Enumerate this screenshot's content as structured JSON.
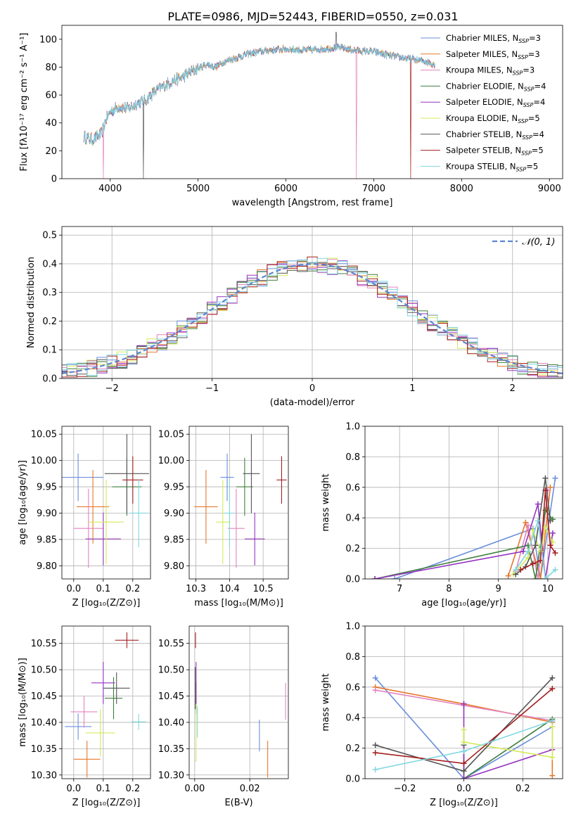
{
  "title": "PLATE=0986, MJD=52443, FIBERID=0550, z=0.031",
  "colors": [
    "#6a8fdc",
    "#e6782a",
    "#e384bd",
    "#3f7f3f",
    "#9633c0",
    "#d4eb5a",
    "#555555",
    "#a51f1f",
    "#7fd7e0"
  ],
  "models": [
    {
      "base": "Chabrier MILES",
      "n": "3"
    },
    {
      "base": "Salpeter MILES",
      "n": "3"
    },
    {
      "base": "Kroupa MILES",
      "n": "3"
    },
    {
      "base": "Chabrier ELODIE",
      "n": "4"
    },
    {
      "base": "Salpeter ELODIE",
      "n": "4"
    },
    {
      "base": "Kroupa ELODIE",
      "n": "5"
    },
    {
      "base": "Chabrier STELIB",
      "n": "4"
    },
    {
      "base": "Salpeter STELIB",
      "n": "5"
    },
    {
      "base": "Kroupa STELIB",
      "n": "5"
    }
  ],
  "legend_sub": "SSP",
  "legend_prefix": "N",
  "chart_data": [
    {
      "id": "spectrum",
      "type": "line",
      "xlabel": "wavelength [Angstrom, rest frame]",
      "ylabel": "Flux [fλ10⁻¹⁷ erg cm⁻² s⁻¹ A⁻¹]",
      "xlim": [
        3450,
        9150
      ],
      "ylim": [
        0,
        110
      ],
      "xticks": [
        4000,
        5000,
        6000,
        7000,
        8000,
        9000
      ],
      "yticks": [
        0,
        20,
        40,
        60,
        80,
        100
      ],
      "curve": [
        [
          3700,
          30
        ],
        [
          3800,
          28
        ],
        [
          3900,
          32
        ],
        [
          3950,
          42
        ],
        [
          4000,
          48
        ],
        [
          4100,
          52
        ],
        [
          4200,
          50
        ],
        [
          4300,
          54
        ],
        [
          4400,
          56
        ],
        [
          4500,
          62
        ],
        [
          4600,
          66
        ],
        [
          4700,
          70
        ],
        [
          4800,
          72
        ],
        [
          4900,
          76
        ],
        [
          5000,
          79
        ],
        [
          5100,
          82
        ],
        [
          5200,
          80
        ],
        [
          5300,
          84
        ],
        [
          5400,
          86
        ],
        [
          5500,
          88
        ],
        [
          5600,
          90
        ],
        [
          5800,
          92
        ],
        [
          6000,
          93
        ],
        [
          6200,
          92
        ],
        [
          6400,
          93
        ],
        [
          6600,
          94
        ],
        [
          6800,
          92
        ],
        [
          7000,
          91
        ],
        [
          7200,
          88
        ],
        [
          7400,
          86
        ],
        [
          7600,
          84
        ],
        [
          7700,
          82
        ]
      ],
      "line_x": [
        3700,
        7700
      ]
    },
    {
      "id": "residuals",
      "type": "line",
      "xlabel": "(data-model)/error",
      "ylabel": "Normed distribution",
      "xlim": [
        -2.5,
        2.5
      ],
      "ylim": [
        0,
        0.53
      ],
      "xticks": [
        -2,
        -1,
        0,
        1,
        2
      ],
      "yticks": [
        0.0,
        0.1,
        0.2,
        0.3,
        0.4,
        0.5
      ],
      "legend": "𝒩(0, 1)"
    },
    {
      "id": "z_age",
      "type": "scatter",
      "xlabel": "Z [log₁₀(Z/Z⊙)]",
      "ylabel": "age  [log₁₀(age/yr)]",
      "xlim": [
        -0.04,
        0.26
      ],
      "ylim": [
        9.775,
        10.065
      ],
      "xticks": [
        0.0,
        0.1,
        0.2
      ],
      "yticks": [
        9.8,
        9.85,
        9.9,
        9.95,
        10.0,
        10.05
      ],
      "points": [
        [
          0.015,
          9.968
        ],
        [
          0.065,
          9.912
        ],
        [
          0.05,
          9.871
        ],
        [
          0.18,
          9.95
        ],
        [
          0.1,
          9.851
        ],
        [
          0.11,
          9.883
        ],
        [
          0.18,
          9.975
        ],
        [
          0.2,
          9.963
        ],
        [
          0.22,
          9.9
        ]
      ],
      "xerr": [
        0.085,
        0.055,
        0.05,
        0.05,
        0.06,
        0.06,
        0.075,
        0.035,
        0.03
      ],
      "yerr": [
        0.045,
        0.07,
        0.075,
        0.055,
        0.05,
        0.08,
        0.075,
        0.045,
        0.065
      ]
    },
    {
      "id": "mass_age",
      "type": "scatter",
      "xlabel": "mass [log₁₀(M/M⊙)]",
      "ylabel": "",
      "xlim": [
        10.28,
        10.575
      ],
      "ylim": [
        9.775,
        10.065
      ],
      "xticks": [
        10.3,
        10.4,
        10.5
      ],
      "yticks": [
        9.8,
        9.85,
        9.9,
        9.95,
        10.0,
        10.05
      ],
      "points": [
        [
          10.393,
          9.968
        ],
        [
          10.33,
          9.912
        ],
        [
          10.42,
          9.871
        ],
        [
          10.445,
          9.95
        ],
        [
          10.475,
          9.851
        ],
        [
          10.38,
          9.883
        ],
        [
          10.465,
          9.975
        ],
        [
          10.555,
          9.963
        ],
        [
          10.4,
          9.9
        ]
      ],
      "xerr": [
        0.02,
        0.035,
        0.025,
        0.025,
        0.03,
        0.02,
        0.025,
        0.015,
        0.015
      ],
      "yerr": [
        0.045,
        0.07,
        0.075,
        0.055,
        0.05,
        0.08,
        0.075,
        0.045,
        0.065
      ]
    },
    {
      "id": "age_weight",
      "type": "line",
      "xlabel": "age  [log₁₀(age/yr)]",
      "ylabel": "mass weight",
      "xlim": [
        6.3,
        10.3
      ],
      "ylim": [
        0,
        1
      ],
      "xticks": [
        7,
        8,
        9,
        10
      ],
      "yticks": [
        0.0,
        0.2,
        0.4,
        0.6,
        0.8,
        1.0
      ],
      "series": [
        {
          "x": [
            6.9,
            9.7,
            9.85,
            10.15
          ],
          "y": [
            0.0,
            0.33,
            0.0,
            0.66
          ]
        },
        {
          "x": [
            9.2,
            9.55,
            9.85,
            10.05
          ],
          "y": [
            0.02,
            0.37,
            0.0,
            0.6
          ]
        },
        {
          "x": [
            9.35,
            9.6,
            9.8,
            10.0
          ],
          "y": [
            0.05,
            0.35,
            0.0,
            0.58
          ]
        },
        {
          "x": [
            6.5,
            9.6,
            9.75,
            9.95,
            10.1
          ],
          "y": [
            0.0,
            0.22,
            0.0,
            0.45,
            0.39
          ]
        },
        {
          "x": [
            6.5,
            9.5,
            9.8,
            9.95,
            10.1
          ],
          "y": [
            0.0,
            0.18,
            0.49,
            0.0,
            0.3
          ]
        },
        {
          "x": [
            9.3,
            9.6,
            9.7,
            9.85,
            9.95,
            10.1
          ],
          "y": [
            0.03,
            0.14,
            0.32,
            0.18,
            0.34,
            0.24
          ]
        },
        {
          "x": [
            9.35,
            9.55,
            9.75,
            9.95,
            10.05
          ],
          "y": [
            0.03,
            0.08,
            0.22,
            0.66,
            0.38
          ]
        },
        {
          "x": [
            9.45,
            9.7,
            9.85,
            9.95,
            10.05,
            10.15
          ],
          "y": [
            0.06,
            0.1,
            0.12,
            0.58,
            0.22,
            0.17
          ]
        },
        {
          "x": [
            9.35,
            9.6,
            9.8,
            9.95,
            10.15
          ],
          "y": [
            0.06,
            0.18,
            0.38,
            0.0,
            0.06
          ]
        }
      ]
    },
    {
      "id": "z_mass",
      "type": "scatter",
      "xlabel": "Z [log₁₀(Z/Z⊙)]",
      "ylabel": "mass [log₁₀(M/M⊙)]",
      "xlim": [
        -0.04,
        0.26
      ],
      "ylim": [
        10.293,
        10.583
      ],
      "xticks": [
        0.0,
        0.1,
        0.2
      ],
      "yticks": [
        10.3,
        10.35,
        10.4,
        10.45,
        10.5,
        10.55
      ],
      "points": [
        [
          0.015,
          10.392
        ],
        [
          0.045,
          10.33
        ],
        [
          0.035,
          10.42
        ],
        [
          0.135,
          10.446
        ],
        [
          0.1,
          10.475
        ],
        [
          0.09,
          10.38
        ],
        [
          0.145,
          10.465
        ],
        [
          0.18,
          10.556
        ],
        [
          0.22,
          10.401
        ]
      ],
      "xerr": [
        0.045,
        0.045,
        0.045,
        0.03,
        0.04,
        0.05,
        0.045,
        0.04,
        0.025
      ],
      "yerr": [
        0.025,
        0.035,
        0.03,
        0.04,
        0.04,
        0.045,
        0.03,
        0.015,
        0.015
      ]
    },
    {
      "id": "ebv_mass",
      "type": "scatter",
      "xlabel": "E(B-V)",
      "ylabel": "",
      "xlim": [
        -0.002,
        0.034
      ],
      "ylim": [
        10.293,
        10.583
      ],
      "xticks": [
        0.0,
        0.02
      ],
      "yticks": [
        10.3,
        10.35,
        10.4,
        10.45,
        10.5,
        10.55
      ],
      "points": [
        [
          0.0235,
          10.375
        ],
        [
          0.0265,
          10.33
        ],
        [
          0.033,
          10.44
        ],
        [
          0.0005,
          10.446
        ],
        [
          0.0005,
          10.475
        ],
        [
          0.0005,
          10.38
        ],
        [
          0.0002,
          10.465
        ],
        [
          0.0003,
          10.556
        ],
        [
          0.001,
          10.401
        ]
      ],
      "yerr": [
        0.03,
        0.035,
        0.035,
        0.03,
        0.04,
        0.055,
        0.04,
        0.015,
        0.03
      ]
    },
    {
      "id": "z_weight",
      "type": "line",
      "xlabel": "Z [log₁₀(Z/Z⊙)]",
      "ylabel": "mass weight",
      "xlim": [
        -0.335,
        0.335
      ],
      "ylim": [
        0,
        1
      ],
      "xticks": [
        -0.2,
        0.0,
        0.2
      ],
      "yticks": [
        0.0,
        0.2,
        0.4,
        0.6,
        0.8,
        1.0
      ],
      "series": [
        {
          "x": [
            -0.3,
            0.0,
            0.3
          ],
          "y": [
            0.66,
            0.0,
            0.34
          ]
        },
        {
          "x": [
            -0.3,
            0.0,
            0.3,
            0.3
          ],
          "y": [
            0.6,
            0.49,
            0.37,
            0.02
          ]
        },
        {
          "x": [
            -0.3,
            0.0,
            0.3
          ],
          "y": [
            0.58,
            0.48,
            0.38
          ]
        },
        {
          "x": [
            0.0,
            0.0,
            0.3
          ],
          "y": [
            0.22,
            0.0,
            0.39
          ]
        },
        {
          "x": [
            0.0,
            0.0,
            0.3
          ],
          "y": [
            0.49,
            0.0,
            0.19
          ]
        },
        {
          "x": [
            0.0,
            0.0,
            0.3,
            0.3
          ],
          "y": [
            0.32,
            0.24,
            0.14,
            0.34
          ]
        },
        {
          "x": [
            -0.3,
            0.0,
            0.3
          ],
          "y": [
            0.22,
            0.05,
            0.66
          ]
        },
        {
          "x": [
            -0.3,
            0.0,
            0.3
          ],
          "y": [
            0.17,
            0.1,
            0.59
          ]
        },
        {
          "x": [
            -0.3,
            0.0,
            0.3
          ],
          "y": [
            0.06,
            0.18,
            0.38
          ]
        }
      ]
    }
  ]
}
